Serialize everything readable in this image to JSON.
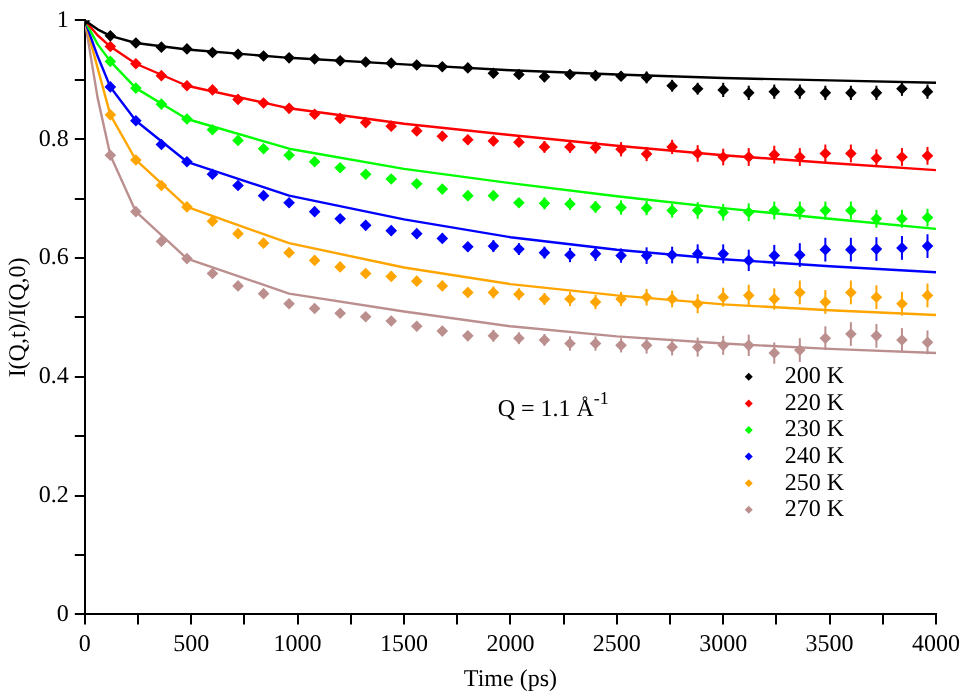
{
  "chart_data": {
    "type": "scatter",
    "xlabel": "Time (ps)",
    "ylabel": "I(Q,t)/I(Q,0)",
    "annotations": [
      "Q = 1.1 Å$^{-1}$"
    ],
    "x": [
      0,
      120,
      240,
      360,
      480,
      600,
      720,
      840,
      960,
      1080,
      1200,
      1320,
      1440,
      1560,
      1680,
      1800,
      1920,
      2040,
      2160,
      2280,
      2400,
      2520,
      2640,
      2760,
      2880,
      3000,
      3120,
      3240,
      3360,
      3480,
      3600,
      3720,
      3840,
      3960
    ],
    "xlim": [
      0,
      4000
    ],
    "xticks": [
      0,
      {
        "value": 250,
        "label": null
      },
      500,
      {
        "value": 750,
        "label": null
      },
      1000,
      {
        "value": 1250,
        "label": null
      },
      1500,
      {
        "value": 1750,
        "label": null
      },
      2000,
      {
        "value": 2250,
        "label": null
      },
      2500,
      {
        "value": 2750,
        "label": null
      },
      3000,
      {
        "value": 3250,
        "label": null
      },
      3500,
      {
        "value": 3750,
        "label": null
      },
      4000
    ],
    "ylim": [
      0,
      1
    ],
    "yticks": [
      0,
      {
        "value": 0.1,
        "label": null
      },
      0.2,
      {
        "value": 0.3,
        "label": null
      },
      0.4,
      {
        "value": 0.5,
        "label": null
      },
      0.6,
      {
        "value": 0.7,
        "label": null
      },
      0.8,
      {
        "value": 0.9,
        "label": null
      },
      1
    ],
    "grid": false,
    "legend": "bottom right",
    "marker": "diamond",
    "series": [
      {
        "name": "200 K",
        "color": "#000000",
        "values": [
          1,
          0.974,
          0.962,
          0.955,
          0.952,
          0.946,
          0.943,
          0.94,
          0.937,
          0.935,
          0.932,
          0.93,
          0.928,
          0.925,
          0.922,
          0.92,
          0.911,
          0.909,
          0.905,
          0.909,
          0.907,
          0.906,
          0.904,
          0.89,
          0.885,
          0.883,
          0.878,
          0.88,
          0.88,
          0.878,
          0.878,
          0.878,
          0.885,
          0.88
        ],
        "errors": [
          0,
          0.004,
          0.004,
          0.004,
          0.004,
          0.004,
          0.004,
          0.004,
          0.004,
          0.005,
          0.005,
          0.005,
          0.005,
          0.006,
          0.006,
          0.006,
          0.008,
          0.008,
          0.008,
          0.008,
          0.008,
          0.008,
          0.01,
          0.01,
          0.01,
          0.012,
          0.012,
          0.012,
          0.012,
          0.012,
          0.012,
          0.012,
          0.012,
          0.012
        ]
      },
      {
        "name": "220 K",
        "color": "#ff0000",
        "values": [
          null,
          0.956,
          0.927,
          0.907,
          0.89,
          0.883,
          0.867,
          0.861,
          0.852,
          0.842,
          0.835,
          0.828,
          0.822,
          0.814,
          0.805,
          0.799,
          0.797,
          0.795,
          0.787,
          0.787,
          0.786,
          0.783,
          0.775,
          0.787,
          0.776,
          0.77,
          0.77,
          0.774,
          0.77,
          0.776,
          0.776,
          0.768,
          0.77,
          0.772
        ],
        "errors": [
          null,
          0.004,
          0.004,
          0.004,
          0.004,
          0.005,
          0.005,
          0.005,
          0.005,
          0.005,
          0.006,
          0.006,
          0.006,
          0.006,
          0.008,
          0.008,
          0.008,
          0.008,
          0.01,
          0.01,
          0.01,
          0.012,
          0.012,
          0.012,
          0.014,
          0.014,
          0.015,
          0.015,
          0.015,
          0.015,
          0.015,
          0.015,
          0.015,
          0.015
        ]
      },
      {
        "name": "230 K",
        "color": "#00ff00",
        "values": [
          null,
          0.931,
          0.886,
          0.859,
          0.834,
          0.816,
          0.798,
          0.784,
          0.773,
          0.762,
          0.752,
          0.741,
          0.733,
          0.725,
          0.716,
          0.705,
          0.705,
          0.693,
          0.692,
          0.691,
          0.686,
          0.685,
          0.684,
          0.68,
          0.68,
          0.677,
          0.677,
          0.68,
          0.68,
          0.68,
          0.68,
          0.666,
          0.666,
          0.668
        ],
        "errors": [
          null,
          0.004,
          0.004,
          0.004,
          0.004,
          0.005,
          0.005,
          0.005,
          0.005,
          0.005,
          0.006,
          0.006,
          0.006,
          0.006,
          0.008,
          0.008,
          0.008,
          0.008,
          0.01,
          0.01,
          0.01,
          0.012,
          0.012,
          0.012,
          0.014,
          0.014,
          0.015,
          0.015,
          0.015,
          0.015,
          0.015,
          0.015,
          0.015,
          0.015
        ]
      },
      {
        "name": "240 K",
        "color": "#0000ff",
        "values": [
          null,
          0.888,
          0.831,
          0.791,
          0.762,
          0.741,
          0.722,
          0.705,
          0.693,
          0.678,
          0.666,
          0.655,
          0.646,
          0.641,
          0.633,
          0.619,
          0.62,
          0.615,
          0.609,
          0.605,
          0.607,
          0.604,
          0.604,
          0.605,
          0.607,
          0.607,
          0.596,
          0.604,
          0.605,
          0.614,
          0.614,
          0.615,
          0.617,
          0.62
        ],
        "errors": [
          null,
          0.004,
          0.004,
          0.004,
          0.005,
          0.005,
          0.005,
          0.005,
          0.006,
          0.006,
          0.006,
          0.006,
          0.008,
          0.008,
          0.008,
          0.008,
          0.01,
          0.01,
          0.01,
          0.012,
          0.012,
          0.012,
          0.014,
          0.014,
          0.016,
          0.016,
          0.018,
          0.018,
          0.02,
          0.02,
          0.02,
          0.02,
          0.02,
          0.02
        ]
      },
      {
        "name": "250 K",
        "color": "#ffa500",
        "values": [
          null,
          0.841,
          0.765,
          0.722,
          0.686,
          0.662,
          0.641,
          0.625,
          0.609,
          0.596,
          0.585,
          0.574,
          0.569,
          0.561,
          0.553,
          0.542,
          0.542,
          0.539,
          0.531,
          0.531,
          0.526,
          0.531,
          0.534,
          0.531,
          0.523,
          0.534,
          0.537,
          0.531,
          0.542,
          0.526,
          0.542,
          0.534,
          0.523,
          0.537
        ],
        "errors": [
          null,
          0.004,
          0.004,
          0.004,
          0.005,
          0.005,
          0.005,
          0.005,
          0.006,
          0.006,
          0.006,
          0.006,
          0.008,
          0.008,
          0.008,
          0.008,
          0.01,
          0.01,
          0.01,
          0.012,
          0.012,
          0.012,
          0.014,
          0.014,
          0.016,
          0.016,
          0.018,
          0.018,
          0.02,
          0.02,
          0.02,
          0.02,
          0.02,
          0.02
        ]
      },
      {
        "name": "270 K",
        "color": "#bc8f8f",
        "values": [
          null,
          0.773,
          0.678,
          0.628,
          0.599,
          0.574,
          0.553,
          0.54,
          0.523,
          0.515,
          0.507,
          0.501,
          0.494,
          0.485,
          0.477,
          0.469,
          0.469,
          0.465,
          0.462,
          0.456,
          0.456,
          0.453,
          0.453,
          0.45,
          0.45,
          0.453,
          0.453,
          0.44,
          0.445,
          0.465,
          0.472,
          0.469,
          0.462,
          0.458
        ],
        "errors": [
          null,
          0.004,
          0.004,
          0.004,
          0.005,
          0.005,
          0.005,
          0.005,
          0.006,
          0.006,
          0.006,
          0.006,
          0.008,
          0.008,
          0.008,
          0.008,
          0.01,
          0.01,
          0.01,
          0.012,
          0.012,
          0.012,
          0.014,
          0.014,
          0.016,
          0.016,
          0.018,
          0.018,
          0.02,
          0.02,
          0.02,
          0.02,
          0.02,
          0.02
        ]
      },
      {
        "type": "line",
        "marker": "none",
        "color": "#000000",
        "x": [
          0,
          60,
          120,
          240,
          480,
          960,
          1500,
          2000,
          2500,
          3000,
          3500,
          4000
        ],
        "values": [
          1,
          0.985,
          0.974,
          0.962,
          0.951,
          0.937,
          0.926,
          0.916,
          0.909,
          0.903,
          0.899,
          0.895
        ]
      },
      {
        "type": "line",
        "marker": "none",
        "color": "#ff0000",
        "x": [
          0,
          60,
          120,
          240,
          480,
          960,
          1500,
          2000,
          2500,
          3000,
          3500,
          4000
        ],
        "values": [
          1,
          0.975,
          0.956,
          0.927,
          0.89,
          0.852,
          0.826,
          0.807,
          0.789,
          0.773,
          0.76,
          0.748
        ]
      },
      {
        "type": "line",
        "marker": "none",
        "color": "#00ff00",
        "x": [
          0,
          60,
          120,
          240,
          480,
          960,
          1500,
          2000,
          2500,
          3000,
          3500,
          4000
        ],
        "values": [
          1,
          0.96,
          0.931,
          0.886,
          0.834,
          0.784,
          0.75,
          0.726,
          0.704,
          0.684,
          0.666,
          0.649
        ]
      },
      {
        "type": "line",
        "marker": "none",
        "color": "#0000ff",
        "x": [
          0,
          60,
          120,
          240,
          480,
          960,
          1500,
          2000,
          2500,
          3000,
          3500,
          4000
        ],
        "values": [
          1,
          0.94,
          0.888,
          0.831,
          0.762,
          0.705,
          0.665,
          0.635,
          0.614,
          0.598,
          0.586,
          0.576
        ]
      },
      {
        "type": "line",
        "marker": "none",
        "color": "#ffa500",
        "x": [
          0,
          60,
          120,
          240,
          480,
          960,
          1500,
          2000,
          2500,
          3000,
          3500,
          4000
        ],
        "values": [
          1,
          0.92,
          0.841,
          0.765,
          0.686,
          0.625,
          0.584,
          0.556,
          0.537,
          0.522,
          0.512,
          0.504
        ]
      },
      {
        "type": "line",
        "marker": "none",
        "color": "#bc8f8f",
        "x": [
          0,
          60,
          120,
          240,
          480,
          960,
          1500,
          2000,
          2500,
          3000,
          3500,
          4000
        ],
        "values": [
          1,
          0.87,
          0.773,
          0.678,
          0.599,
          0.54,
          0.51,
          0.485,
          0.468,
          0.456,
          0.447,
          0.44
        ]
      }
    ]
  }
}
